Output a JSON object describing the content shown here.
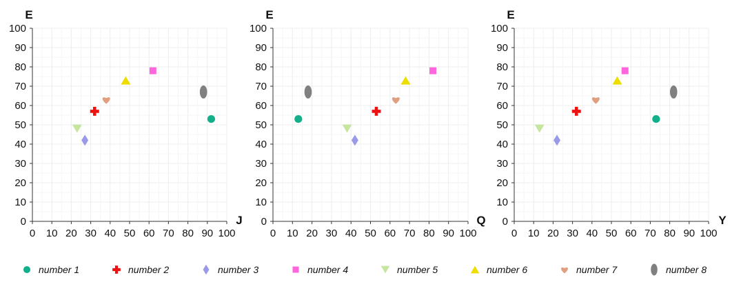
{
  "chart_data": [
    {
      "type": "scatter",
      "xlabel": "J",
      "ylabel": "E",
      "xlim": [
        0,
        100
      ],
      "ylim": [
        0,
        100
      ],
      "ticks": [
        "0",
        "10",
        "20",
        "30",
        "40",
        "50",
        "60",
        "70",
        "80",
        "90",
        "100"
      ],
      "grid": true,
      "series": [
        {
          "name": "number 1",
          "x": 92,
          "y": 53
        },
        {
          "name": "number 2",
          "x": 32,
          "y": 57
        },
        {
          "name": "number 3",
          "x": 27,
          "y": 42
        },
        {
          "name": "number 4",
          "x": 62,
          "y": 78
        },
        {
          "name": "number 5",
          "x": 23,
          "y": 48
        },
        {
          "name": "number 6",
          "x": 48,
          "y": 73
        },
        {
          "name": "number 7",
          "x": 38,
          "y": 63
        },
        {
          "name": "number 8",
          "x": 88,
          "y": 67
        }
      ]
    },
    {
      "type": "scatter",
      "xlabel": "Q",
      "ylabel": "E",
      "xlim": [
        0,
        100
      ],
      "ylim": [
        0,
        100
      ],
      "ticks": [
        "0",
        "10",
        "20",
        "30",
        "40",
        "50",
        "60",
        "70",
        "80",
        "90",
        "100"
      ],
      "grid": true,
      "series": [
        {
          "name": "number 1",
          "x": 13,
          "y": 53
        },
        {
          "name": "number 2",
          "x": 53,
          "y": 57
        },
        {
          "name": "number 3",
          "x": 42,
          "y": 42
        },
        {
          "name": "number 4",
          "x": 82,
          "y": 78
        },
        {
          "name": "number 5",
          "x": 38,
          "y": 48
        },
        {
          "name": "number 6",
          "x": 68,
          "y": 73
        },
        {
          "name": "number 7",
          "x": 63,
          "y": 63
        },
        {
          "name": "number 8",
          "x": 18,
          "y": 67
        }
      ]
    },
    {
      "type": "scatter",
      "xlabel": "Y",
      "ylabel": "E",
      "xlim": [
        0,
        100
      ],
      "ylim": [
        0,
        100
      ],
      "ticks": [
        "0",
        "10",
        "20",
        "30",
        "40",
        "50",
        "60",
        "70",
        "80",
        "90",
        "100"
      ],
      "grid": true,
      "series": [
        {
          "name": "number 1",
          "x": 73,
          "y": 53
        },
        {
          "name": "number 2",
          "x": 32,
          "y": 57
        },
        {
          "name": "number 3",
          "x": 22,
          "y": 42
        },
        {
          "name": "number 4",
          "x": 57,
          "y": 78
        },
        {
          "name": "number 5",
          "x": 13,
          "y": 48
        },
        {
          "name": "number 6",
          "x": 53,
          "y": 73
        },
        {
          "name": "number 7",
          "x": 42,
          "y": 63
        },
        {
          "name": "number 8",
          "x": 82,
          "y": 67
        }
      ]
    }
  ],
  "legend": {
    "placement": "bottom",
    "items": [
      {
        "label": "number 1",
        "marker": "circle",
        "color": "#12b08a"
      },
      {
        "label": "number 2",
        "marker": "cross",
        "color": "#ee1111"
      },
      {
        "label": "number 3",
        "marker": "diamond",
        "color": "#9a9ae8"
      },
      {
        "label": "number 4",
        "marker": "square",
        "color": "#ff66dd"
      },
      {
        "label": "number 5",
        "marker": "triangle-down",
        "color": "#c6e6a0"
      },
      {
        "label": "number 6",
        "marker": "triangle-up",
        "color": "#eedd00"
      },
      {
        "label": "number 7",
        "marker": "heart",
        "color": "#e0a080"
      },
      {
        "label": "number 8",
        "marker": "ellipse",
        "color": "#808080"
      }
    ]
  }
}
